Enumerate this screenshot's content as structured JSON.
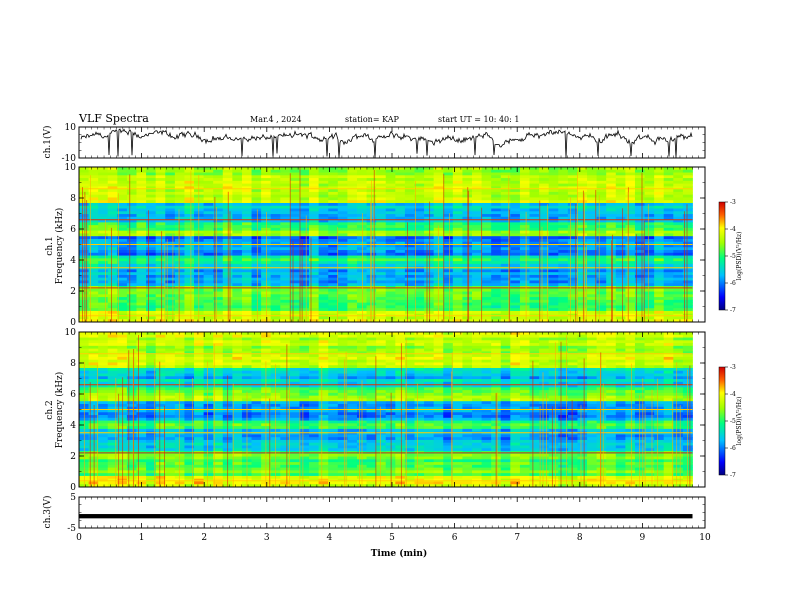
{
  "header": {
    "title": "VLF Spectra",
    "date": "Mar.4 , 2024",
    "station": "station= KAP",
    "start": "start UT = 10: 40: 1"
  },
  "chart_data": [
    {
      "type": "line",
      "ylabel": "ch.1(V)",
      "ylim": [
        -10,
        10
      ],
      "y_ticks": [
        "10",
        "-10"
      ],
      "xlim": [
        0,
        10
      ]
    },
    {
      "type": "heatmap",
      "ylabel": "ch.1\nFrequency (kHz)",
      "ylim": [
        0,
        10
      ],
      "y_ticks": [
        "0",
        "2",
        "4",
        "6",
        "8",
        "10"
      ],
      "colorbar": {
        "label": "log(PSD)(V²/Hz)",
        "range": [
          -7,
          -3
        ],
        "ticks": [
          "-3",
          "-4",
          "-5",
          "-6",
          "-7"
        ]
      }
    },
    {
      "type": "heatmap",
      "ylabel": "ch.2\nFrequency (kHz)",
      "ylim": [
        0,
        10
      ],
      "y_ticks": [
        "0",
        "2",
        "4",
        "6",
        "8",
        "10"
      ],
      "colorbar": {
        "label": "log(PSD)(V²/Hz)",
        "range": [
          -7,
          -3
        ],
        "ticks": [
          "-3",
          "-4",
          "-5",
          "-6",
          "-7"
        ]
      }
    },
    {
      "type": "line",
      "ylabel": "ch.3(V)",
      "ylim": [
        -5,
        5
      ],
      "y_ticks": [
        "5",
        "-5"
      ],
      "xlim": [
        0,
        10
      ]
    }
  ],
  "x_axis": {
    "label": "Time (min)",
    "ticks": [
      "0",
      "1",
      "2",
      "3",
      "4",
      "5",
      "6",
      "7",
      "8",
      "9",
      "10"
    ]
  }
}
